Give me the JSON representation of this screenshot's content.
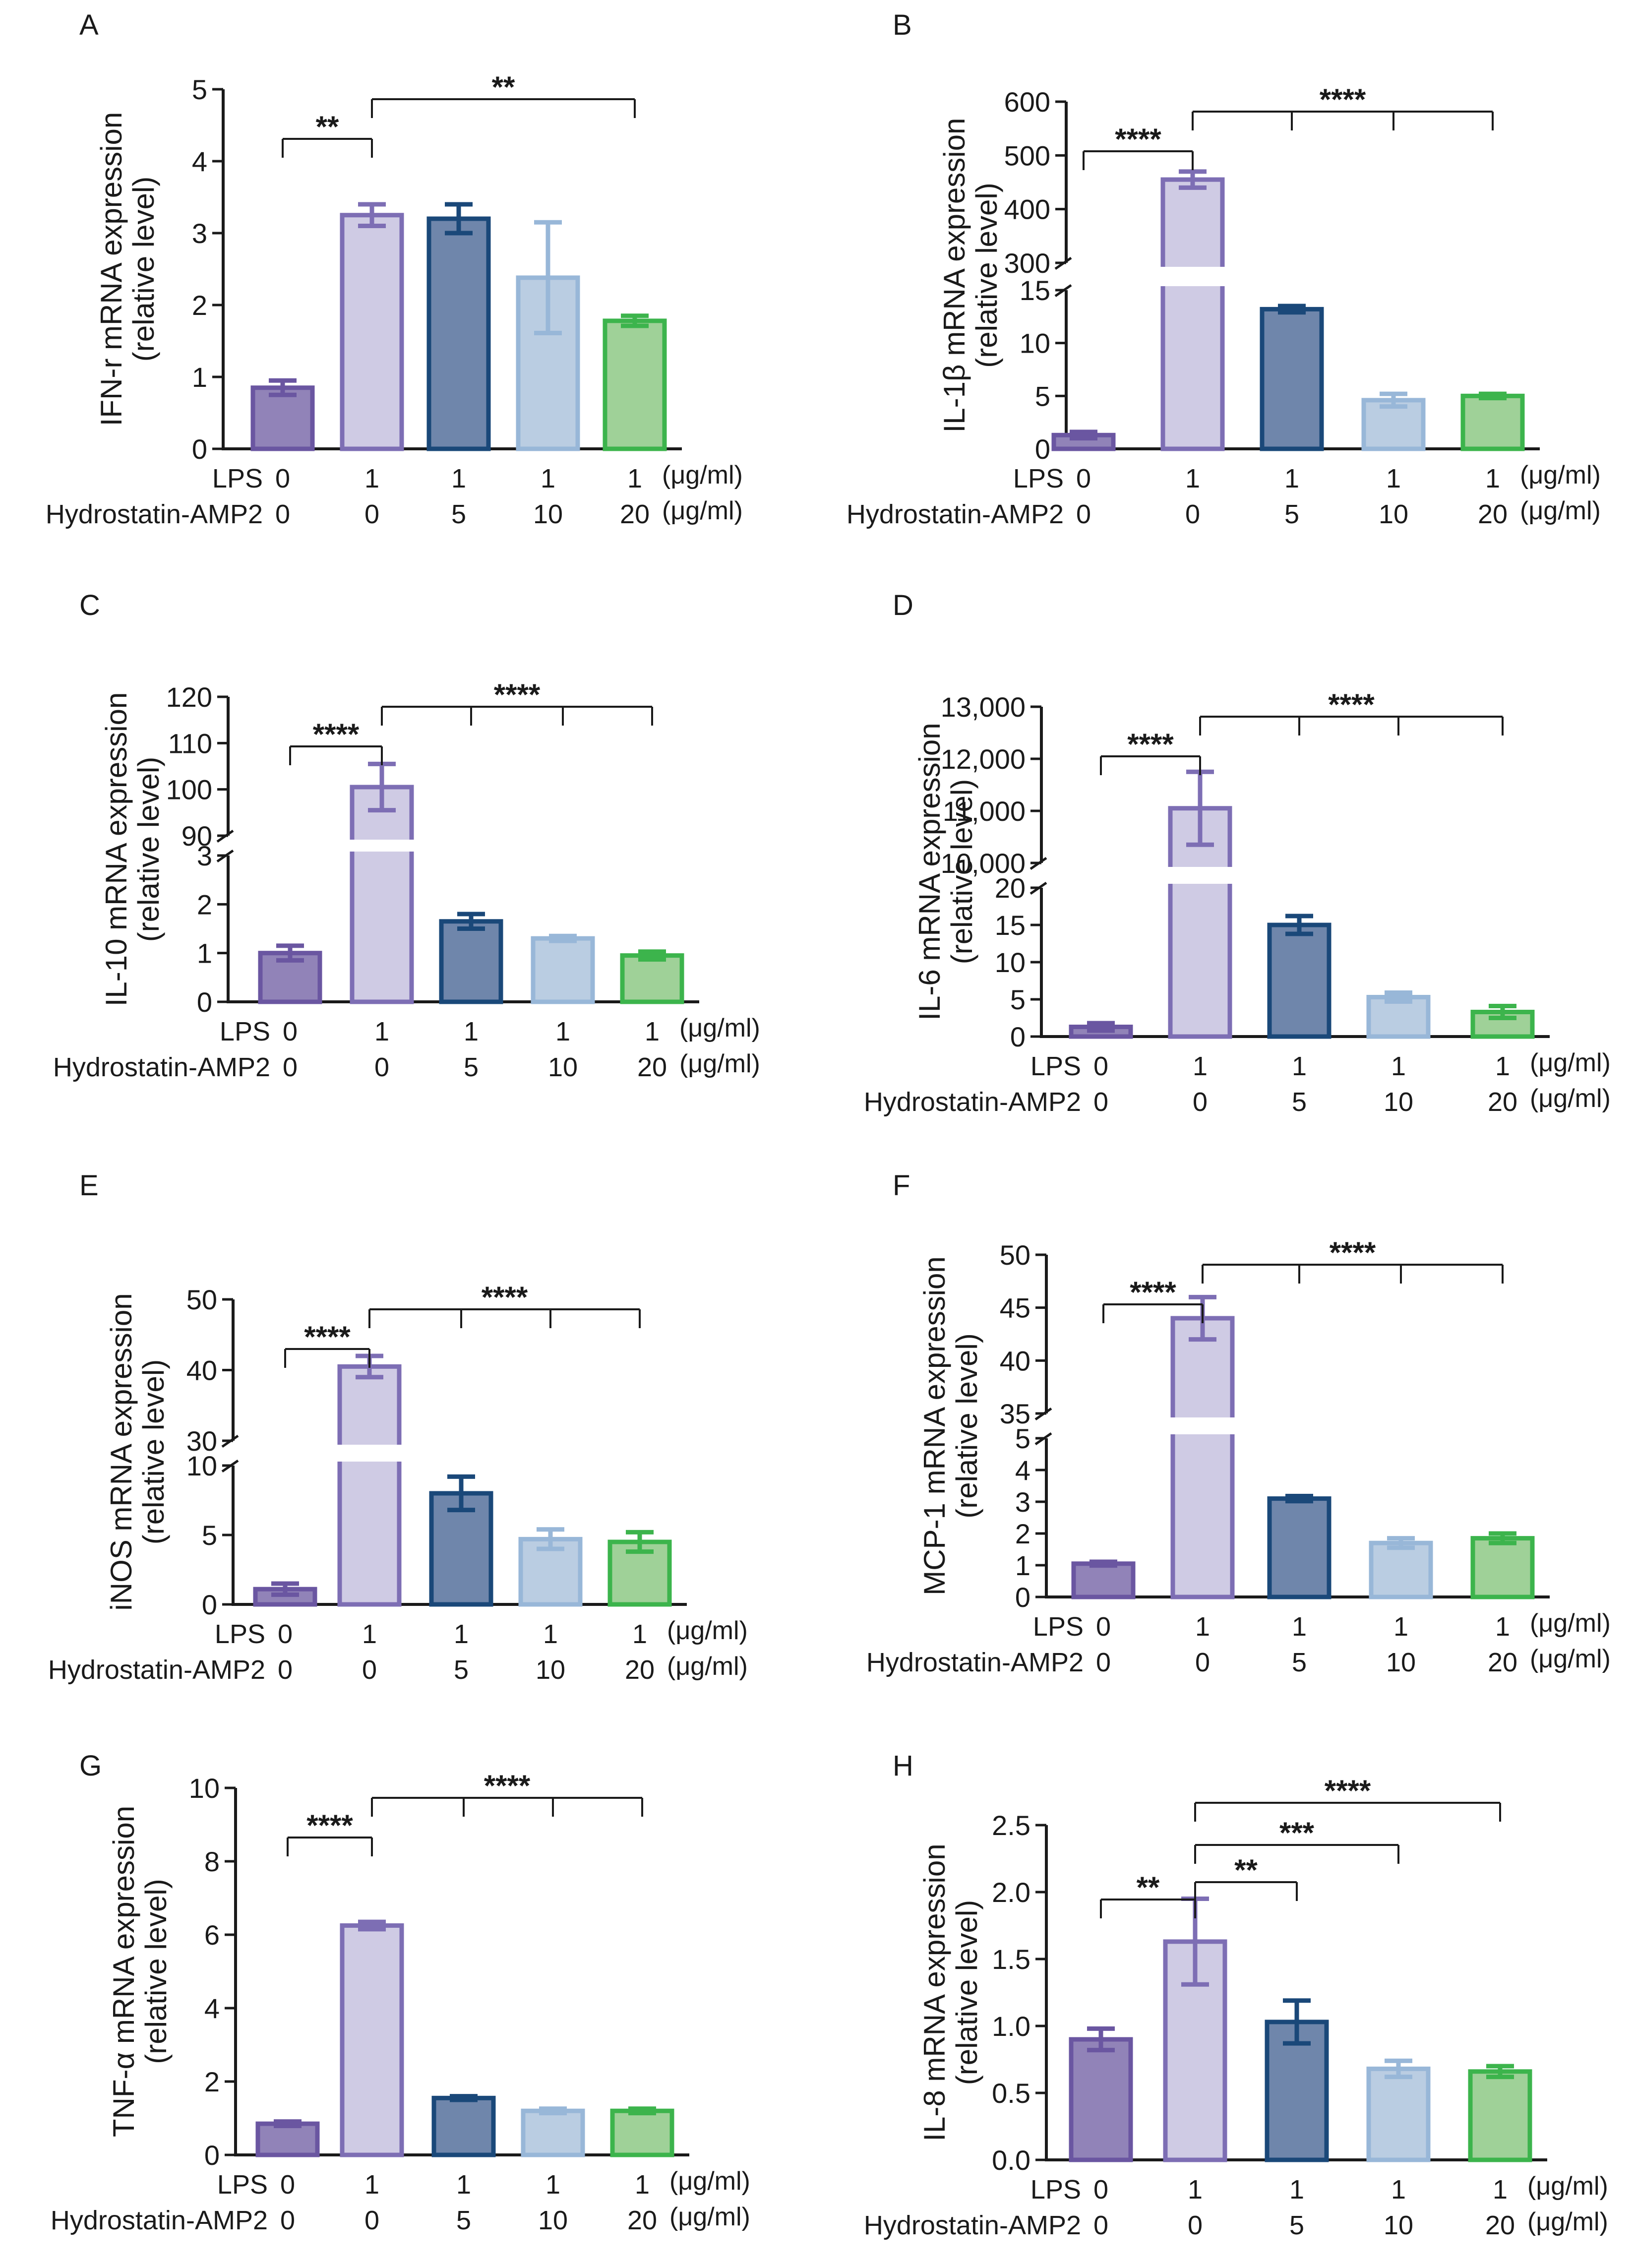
{
  "figure": {
    "x_row_labels": {
      "lps": "LPS",
      "drug": "Hydrostatin-AMP2",
      "unit": "(μg/ml)"
    },
    "group_colors": {
      "fill": [
        "#9183b8",
        "#cfcbe4",
        "#6f86ab",
        "#bacde2",
        "#9fd198"
      ],
      "stroke": [
        "#6a56a1",
        "#7d6eb4",
        "#1a4879",
        "#98b7d8",
        "#3cb44c"
      ]
    }
  },
  "chart_data": [
    {
      "type": "bar",
      "panel_label": "A",
      "ylabel_line1": "IFN-r mRNA expression",
      "ylabel_line2": "(relative level)",
      "categories": [
        "LPS 0 / Hydrostatin-AMP2 0",
        "LPS 1 / Hydrostatin-AMP2 0",
        "LPS 1 / Hydrostatin-AMP2 5",
        "LPS 1 / Hydrostatin-AMP2 10",
        "LPS 1 / Hydrostatin-AMP2 20"
      ],
      "lps": [
        "0",
        "1",
        "1",
        "1",
        "1"
      ],
      "dose": [
        "0",
        "0",
        "5",
        "10",
        "20"
      ],
      "values": [
        0.85,
        3.25,
        3.2,
        2.38,
        1.78
      ],
      "errors": [
        0.1,
        0.15,
        0.2,
        0.77,
        0.07
      ],
      "y_segments": [
        {
          "min": 0,
          "max": 5,
          "ticks": [
            "0",
            "1",
            "2",
            "3",
            "4",
            "5"
          ]
        }
      ],
      "significance": [
        {
          "from": 0,
          "to": [
            1
          ],
          "label": "**"
        },
        {
          "from": 1,
          "to": [
            4
          ],
          "label": "**"
        }
      ]
    },
    {
      "type": "bar",
      "panel_label": "B",
      "ylabel_line1": "IL-1β mRNA expression",
      "ylabel_line2": "(relative level)",
      "categories": [
        "LPS 0 / Hydrostatin-AMP2 0",
        "LPS 1 / Hydrostatin-AMP2 0",
        "LPS 1 / Hydrostatin-AMP2 5",
        "LPS 1 / Hydrostatin-AMP2 10",
        "LPS 1 / Hydrostatin-AMP2 20"
      ],
      "lps": [
        "0",
        "1",
        "1",
        "1",
        "1"
      ],
      "dose": [
        "0",
        "0",
        "5",
        "10",
        "20"
      ],
      "values": [
        1.3,
        455,
        13.2,
        4.6,
        5.0
      ],
      "errors": [
        0.3,
        15,
        0.3,
        0.6,
        0.2
      ],
      "y_segments": [
        {
          "min": 0,
          "max": 15,
          "ticks": [
            "0",
            "5",
            "10",
            "15"
          ]
        },
        {
          "min": 300,
          "max": 600,
          "ticks": [
            "300",
            "400",
            "500",
            "600"
          ]
        }
      ],
      "significance": [
        {
          "from": 0,
          "to": [
            1
          ],
          "label": "****"
        },
        {
          "from": 1,
          "to": [
            2,
            3,
            4
          ],
          "label": "****"
        }
      ]
    },
    {
      "type": "bar",
      "panel_label": "C",
      "ylabel_line1": "IL-10 mRNA expression",
      "ylabel_line2": "(relative level)",
      "categories": [
        "LPS 0 / Hydrostatin-AMP2 0",
        "LPS 1 / Hydrostatin-AMP2 0",
        "LPS 1 / Hydrostatin-AMP2 5",
        "LPS 1 / Hydrostatin-AMP2 10",
        "LPS 1 / Hydrostatin-AMP2 20"
      ],
      "lps": [
        "0",
        "1",
        "1",
        "1",
        "1"
      ],
      "dose": [
        "0",
        "0",
        "5",
        "10",
        "20"
      ],
      "values": [
        1.0,
        100.5,
        1.65,
        1.3,
        0.95
      ],
      "errors": [
        0.15,
        5,
        0.15,
        0.05,
        0.08
      ],
      "y_segments": [
        {
          "min": 0,
          "max": 3,
          "ticks": [
            "0",
            "1",
            "2",
            "3"
          ]
        },
        {
          "min": 90,
          "max": 120,
          "ticks": [
            "90",
            "100",
            "110",
            "120"
          ]
        }
      ],
      "significance": [
        {
          "from": 0,
          "to": [
            1
          ],
          "label": "****"
        },
        {
          "from": 1,
          "to": [
            2,
            3,
            4
          ],
          "label": "****"
        }
      ]
    },
    {
      "type": "bar",
      "panel_label": "D",
      "ylabel_line1": "IL-6 mRNA expression",
      "ylabel_line2": "(relative level)",
      "categories": [
        "LPS 0 / Hydrostatin-AMP2 0",
        "LPS 1 / Hydrostatin-AMP2 0",
        "LPS 1 / Hydrostatin-AMP2 5",
        "LPS 1 / Hydrostatin-AMP2 10",
        "LPS 1 / Hydrostatin-AMP2 20"
      ],
      "lps": [
        "0",
        "1",
        "1",
        "1",
        "1"
      ],
      "dose": [
        "0",
        "0",
        "5",
        "10",
        "20"
      ],
      "values": [
        1.3,
        11050,
        15,
        5.3,
        3.3
      ],
      "errors": [
        0.5,
        700,
        1.2,
        0.6,
        0.8
      ],
      "y_segments": [
        {
          "min": 0,
          "max": 20,
          "ticks": [
            "0",
            "5",
            "10",
            "15",
            "20"
          ]
        },
        {
          "min": 10000,
          "max": 13000,
          "ticks": [
            "10,000",
            "11,000",
            "12,000",
            "13,000"
          ]
        }
      ],
      "significance": [
        {
          "from": 0,
          "to": [
            1
          ],
          "label": "****"
        },
        {
          "from": 1,
          "to": [
            2,
            3,
            4
          ],
          "label": "****"
        }
      ]
    },
    {
      "type": "bar",
      "panel_label": "E",
      "ylabel_line1": "iNOS mRNA expression",
      "ylabel_line2": "(relative level)",
      "categories": [
        "LPS 0 / Hydrostatin-AMP2 0",
        "LPS 1 / Hydrostatin-AMP2 0",
        "LPS 1 / Hydrostatin-AMP2 5",
        "LPS 1 / Hydrostatin-AMP2 10",
        "LPS 1 / Hydrostatin-AMP2 20"
      ],
      "lps": [
        "0",
        "1",
        "1",
        "1",
        "1"
      ],
      "dose": [
        "0",
        "0",
        "5",
        "10",
        "20"
      ],
      "values": [
        1.1,
        40.5,
        8.0,
        4.7,
        4.5
      ],
      "errors": [
        0.4,
        1.5,
        1.2,
        0.7,
        0.7
      ],
      "y_segments": [
        {
          "min": 0,
          "max": 10,
          "ticks": [
            "0",
            "5",
            "10"
          ]
        },
        {
          "min": 30,
          "max": 50,
          "ticks": [
            "30",
            "40",
            "50"
          ]
        }
      ],
      "significance": [
        {
          "from": 0,
          "to": [
            1
          ],
          "label": "****"
        },
        {
          "from": 1,
          "to": [
            2,
            3,
            4
          ],
          "label": "****"
        }
      ]
    },
    {
      "type": "bar",
      "panel_label": "F",
      "ylabel_line1": "MCP-1 mRNA expression",
      "ylabel_line2": "(relative level)",
      "categories": [
        "LPS 0 / Hydrostatin-AMP2 0",
        "LPS 1 / Hydrostatin-AMP2 0",
        "LPS 1 / Hydrostatin-AMP2 5",
        "LPS 1 / Hydrostatin-AMP2 10",
        "LPS 1 / Hydrostatin-AMP2 20"
      ],
      "lps": [
        "0",
        "1",
        "1",
        "1",
        "1"
      ],
      "dose": [
        "0",
        "0",
        "5",
        "10",
        "20"
      ],
      "values": [
        1.05,
        44,
        3.1,
        1.7,
        1.85
      ],
      "errors": [
        0.06,
        2,
        0.08,
        0.15,
        0.15
      ],
      "y_segments": [
        {
          "min": 0,
          "max": 5,
          "ticks": [
            "0",
            "1",
            "2",
            "3",
            "4",
            "5"
          ]
        },
        {
          "min": 35,
          "max": 50,
          "ticks": [
            "35",
            "40",
            "45",
            "50"
          ]
        }
      ],
      "significance": [
        {
          "from": 0,
          "to": [
            1
          ],
          "label": "****"
        },
        {
          "from": 1,
          "to": [
            2,
            3,
            4
          ],
          "label": "****"
        }
      ]
    },
    {
      "type": "bar",
      "panel_label": "G",
      "ylabel_line1": "TNF-α mRNA expression",
      "ylabel_line2": "(relative level)",
      "categories": [
        "LPS 0 / Hydrostatin-AMP2 0",
        "LPS 1 / Hydrostatin-AMP2 0",
        "LPS 1 / Hydrostatin-AMP2 5",
        "LPS 1 / Hydrostatin-AMP2 10",
        "LPS 1 / Hydrostatin-AMP2 20"
      ],
      "lps": [
        "0",
        "1",
        "1",
        "1",
        "1"
      ],
      "dose": [
        "0",
        "0",
        "5",
        "10",
        "20"
      ],
      "values": [
        0.85,
        6.25,
        1.55,
        1.2,
        1.2
      ],
      "errors": [
        0.06,
        0.1,
        0.05,
        0.06,
        0.06
      ],
      "y_segments": [
        {
          "min": 0,
          "max": 10,
          "ticks": [
            "0",
            "2",
            "4",
            "6",
            "8",
            "10"
          ]
        }
      ],
      "significance": [
        {
          "from": 0,
          "to": [
            1
          ],
          "label": "****"
        },
        {
          "from": 1,
          "to": [
            2,
            3,
            4
          ],
          "label": "****"
        }
      ]
    },
    {
      "type": "bar",
      "panel_label": "H",
      "ylabel_line1": "IL-8 mRNA expression",
      "ylabel_line2": "(relative level)",
      "categories": [
        "LPS 0 / Hydrostatin-AMP2 0",
        "LPS 1 / Hydrostatin-AMP2 0",
        "LPS 1 / Hydrostatin-AMP2 5",
        "LPS 1 / Hydrostatin-AMP2 10",
        "LPS 1 / Hydrostatin-AMP2 20"
      ],
      "lps": [
        "0",
        "1",
        "1",
        "1",
        "1"
      ],
      "dose": [
        "0",
        "0",
        "5",
        "10",
        "20"
      ],
      "values": [
        0.9,
        1.63,
        1.03,
        0.68,
        0.66
      ],
      "errors": [
        0.08,
        0.32,
        0.16,
        0.06,
        0.04
      ],
      "y_segments": [
        {
          "min": 0,
          "max": 2.5,
          "ticks": [
            "0.0",
            "0.5",
            "1.0",
            "1.5",
            "2.0",
            "2.5"
          ]
        }
      ],
      "significance": [
        {
          "from": 0,
          "to": [
            1
          ],
          "label": "**"
        },
        {
          "from": 1,
          "to": [
            2
          ],
          "label": "**"
        },
        {
          "from": 1,
          "to": [
            3
          ],
          "label": "***"
        },
        {
          "from": 1,
          "to": [
            4
          ],
          "label": "****"
        }
      ]
    }
  ]
}
